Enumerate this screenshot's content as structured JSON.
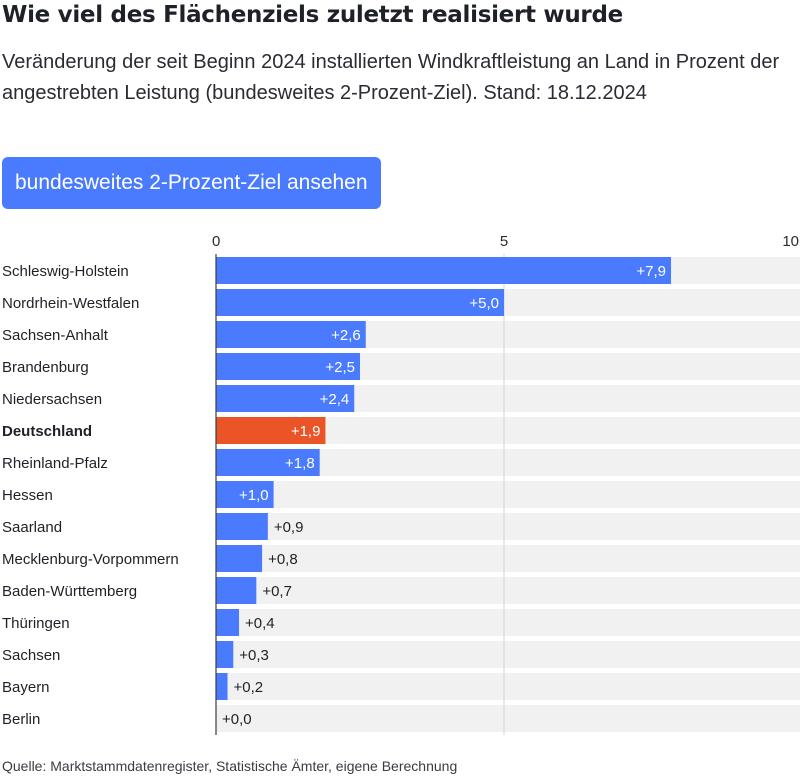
{
  "header": {
    "title": "Wie viel des Flächenziels zuletzt realisiert wurde",
    "subtitle": "Veränderung der seit Beginn 2024 installierten Windkraftleistung an Land in Prozent der angestrebten Leistung (bundesweites 2-Prozent-Ziel). Stand: 18.12.2024"
  },
  "controls": {
    "toggle_label": "bundesweites 2-Prozent-Ziel ansehen"
  },
  "colors": {
    "bar": "#4a7bff",
    "highlight": "#ea5427",
    "track": "#f1f1f1"
  },
  "chart_data": {
    "type": "bar",
    "orientation": "horizontal",
    "categories": [
      "Schleswig-Holstein",
      "Nordrhein-Westfalen",
      "Sachsen-Anhalt",
      "Brandenburg",
      "Niedersachsen",
      "Deutschland",
      "Rheinland-Pfalz",
      "Hessen",
      "Saarland",
      "Mecklenburg-Vorpommern",
      "Baden-Württemberg",
      "Thüringen",
      "Sachsen",
      "Bayern",
      "Berlin"
    ],
    "values": [
      7.9,
      5.0,
      2.6,
      2.5,
      2.4,
      1.9,
      1.8,
      1.0,
      0.9,
      0.8,
      0.7,
      0.4,
      0.3,
      0.2,
      0.0
    ],
    "value_labels": [
      "+7,9",
      "+5,0",
      "+2,6",
      "+2,5",
      "+2,4",
      "+1,9",
      "+1,8",
      "+1,0",
      "+0,9",
      "+0,8",
      "+0,7",
      "+0,4",
      "+0,3",
      "+0,2",
      "+0,0"
    ],
    "highlight": "Deutschland",
    "xlim": [
      0,
      10
    ],
    "xticks": [
      0,
      5,
      10
    ],
    "xtick_labels": [
      "0",
      "5",
      "10"
    ],
    "grid": true
  },
  "footer": {
    "source": "Quelle: Marktstammdatenregister, Statistische Ämter, eigene Berechnung"
  }
}
